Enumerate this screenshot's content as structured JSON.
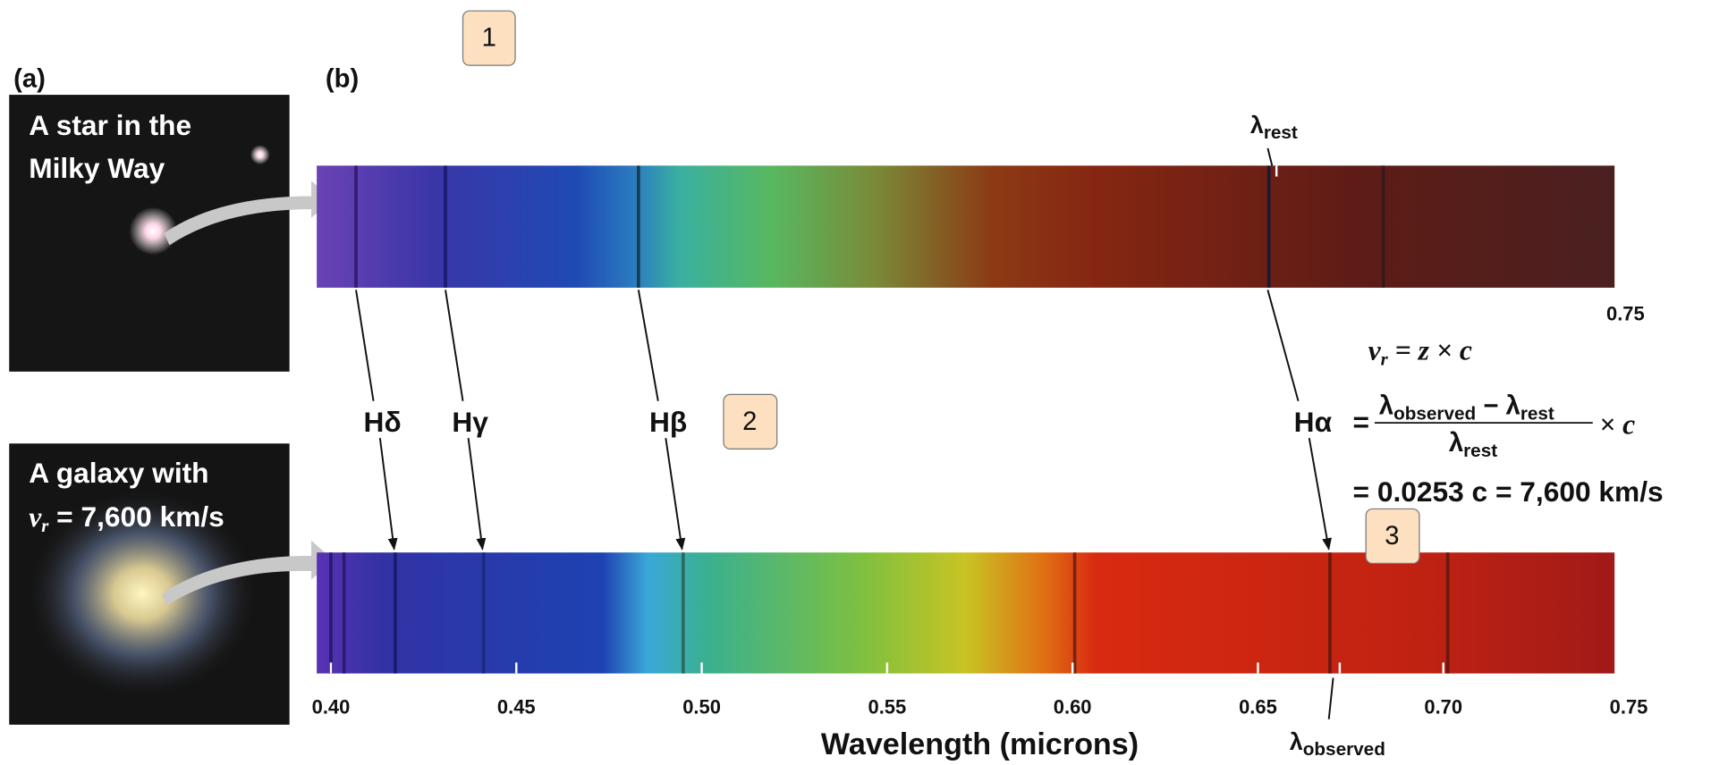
{
  "panel_labels": [
    "(a)",
    "(b)"
  ],
  "badges": [
    "1",
    "2",
    "3"
  ],
  "star_caption": [
    "A star in the",
    "Milky Way"
  ],
  "galaxy_caption": {
    "line1": "A galaxy with",
    "var": "v",
    "sub": "r",
    "rest": " = 7,600 km/s"
  },
  "lambda_rest": {
    "symbol": "λ",
    "sub": "rest"
  },
  "lambda_observed": {
    "symbol": "λ",
    "sub": "observed"
  },
  "top_axis_end": "0.75",
  "lines": [
    "Hδ",
    "Hγ",
    "Hβ",
    "Hα"
  ],
  "equation": {
    "lhs_var": "v",
    "lhs_sub": "r",
    "lhs_rest": " = z × c",
    "eq": "=",
    "num_obs": "λ",
    "num_obs_sub": "observed",
    "minus": " − ",
    "num_rest": "λ",
    "num_rest_sub": "rest",
    "den": "λ",
    "den_sub": "rest",
    "times": "× c",
    "result": "= 0.0253 c = 7,600 km/s"
  },
  "x_axis": {
    "label": "Wavelength (microns)",
    "ticks": [
      {
        "value": 0.4,
        "label": "0.40"
      },
      {
        "value": 0.45,
        "label": "0.45"
      },
      {
        "value": 0.5,
        "label": "0.50"
      },
      {
        "value": 0.55,
        "label": "0.55"
      },
      {
        "value": 0.6,
        "label": "0.60"
      },
      {
        "value": 0.65,
        "label": "0.65"
      },
      {
        "value": 0.7,
        "label": "0.70"
      },
      {
        "value": 0.75,
        "label": "0.75"
      }
    ]
  }
}
